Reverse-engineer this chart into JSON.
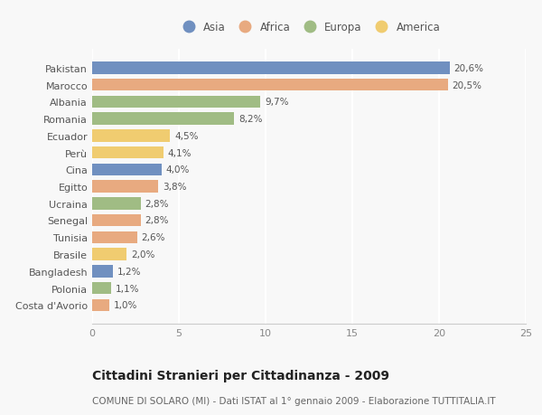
{
  "categories": [
    "Pakistan",
    "Marocco",
    "Albania",
    "Romania",
    "Ecuador",
    "Perù",
    "Cina",
    "Egitto",
    "Ucraina",
    "Senegal",
    "Tunisia",
    "Brasile",
    "Bangladesh",
    "Polonia",
    "Costa d'Avorio"
  ],
  "values": [
    20.6,
    20.5,
    9.7,
    8.2,
    4.5,
    4.1,
    4.0,
    3.8,
    2.8,
    2.8,
    2.6,
    2.0,
    1.2,
    1.1,
    1.0
  ],
  "labels": [
    "20,6%",
    "20,5%",
    "9,7%",
    "8,2%",
    "4,5%",
    "4,1%",
    "4,0%",
    "3,8%",
    "2,8%",
    "2,8%",
    "2,6%",
    "2,0%",
    "1,2%",
    "1,1%",
    "1,0%"
  ],
  "continents": [
    "Asia",
    "Africa",
    "Europa",
    "Europa",
    "America",
    "America",
    "Asia",
    "Africa",
    "Europa",
    "Africa",
    "Africa",
    "America",
    "Asia",
    "Europa",
    "Africa"
  ],
  "continent_colors": {
    "Asia": "#7090c0",
    "Africa": "#e8aa80",
    "Europa": "#a0bc84",
    "America": "#f0cc70"
  },
  "legend_order": [
    "Asia",
    "Africa",
    "Europa",
    "America"
  ],
  "title": "Cittadini Stranieri per Cittadinanza - 2009",
  "subtitle": "COMUNE DI SOLARO (MI) - Dati ISTAT al 1° gennaio 2009 - Elaborazione TUTTITALIA.IT",
  "xlim": [
    0,
    25
  ],
  "xticks": [
    0,
    5,
    10,
    15,
    20,
    25
  ],
  "background_color": "#f8f8f8",
  "bar_height": 0.72,
  "title_fontsize": 10,
  "subtitle_fontsize": 7.5,
  "label_fontsize": 7.5,
  "tick_fontsize": 8,
  "legend_fontsize": 8.5
}
